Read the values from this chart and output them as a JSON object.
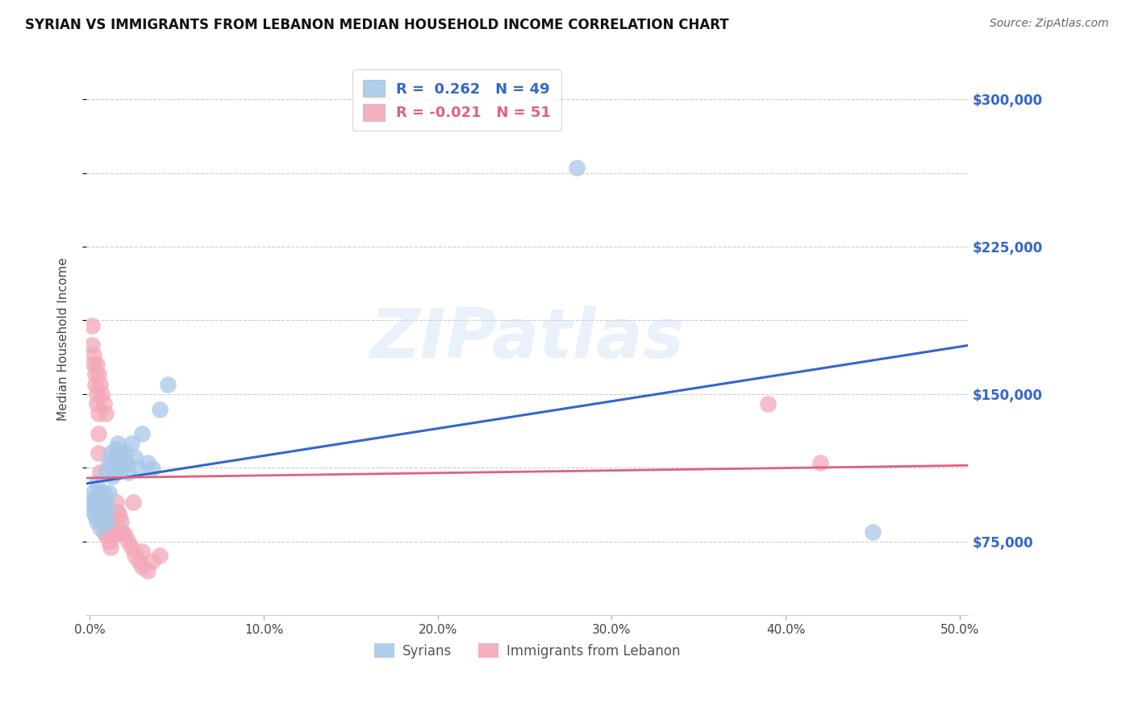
{
  "title": "SYRIAN VS IMMIGRANTS FROM LEBANON MEDIAN HOUSEHOLD INCOME CORRELATION CHART",
  "source": "Source: ZipAtlas.com",
  "ylabel": "Median Household Income",
  "ytick_vals": [
    75000,
    112500,
    150000,
    187500,
    225000,
    262500,
    300000
  ],
  "ytick_labels": [
    "$75,000",
    "",
    "$150,000",
    "",
    "$225,000",
    "",
    "$300,000"
  ],
  "ymin": 37500,
  "ymax": 318750,
  "xmin": -0.002,
  "xmax": 0.505,
  "xtick_vals": [
    0.0,
    0.1,
    0.2,
    0.3,
    0.4,
    0.5
  ],
  "xtick_labels": [
    "0.0%",
    "10.0%",
    "20.0%",
    "30.0%",
    "40.0%",
    "50.0%"
  ],
  "syrians_color": "#a8c8e8",
  "lebanon_color": "#f4a8b8",
  "line_blue": "#3366cc",
  "line_pink": "#e06080",
  "watermark_text": "ZIPatlas",
  "legend_label1": "Syrians",
  "legend_label2": "Immigrants from Lebanon",
  "legend_r1": "R =  0.262   N = 49",
  "legend_r2": "R = -0.021   N = 51",
  "syrians_x": [
    0.001,
    0.002,
    0.002,
    0.003,
    0.003,
    0.003,
    0.004,
    0.004,
    0.004,
    0.005,
    0.005,
    0.005,
    0.006,
    0.006,
    0.006,
    0.007,
    0.007,
    0.008,
    0.008,
    0.008,
    0.009,
    0.009,
    0.01,
    0.01,
    0.011,
    0.011,
    0.012,
    0.013,
    0.013,
    0.014,
    0.015,
    0.015,
    0.016,
    0.017,
    0.018,
    0.019,
    0.02,
    0.021,
    0.022,
    0.024,
    0.026,
    0.028,
    0.03,
    0.033,
    0.036,
    0.04,
    0.045,
    0.28,
    0.45
  ],
  "syrians_y": [
    95000,
    100000,
    90000,
    88000,
    97000,
    92000,
    85000,
    95000,
    105000,
    88000,
    93000,
    100000,
    82000,
    90000,
    97000,
    88000,
    95000,
    85000,
    92000,
    100000,
    110000,
    95000,
    92000,
    85000,
    115000,
    100000,
    120000,
    108000,
    115000,
    118000,
    122000,
    110000,
    125000,
    120000,
    118000,
    112000,
    120000,
    115000,
    110000,
    125000,
    118000,
    112000,
    130000,
    115000,
    112000,
    142000,
    155000,
    265000,
    80000
  ],
  "lebanon_x": [
    0.001,
    0.001,
    0.002,
    0.002,
    0.003,
    0.003,
    0.004,
    0.004,
    0.005,
    0.005,
    0.005,
    0.006,
    0.006,
    0.007,
    0.007,
    0.008,
    0.008,
    0.009,
    0.009,
    0.01,
    0.01,
    0.011,
    0.012,
    0.012,
    0.013,
    0.014,
    0.015,
    0.016,
    0.017,
    0.018,
    0.019,
    0.02,
    0.022,
    0.024,
    0.026,
    0.028,
    0.03,
    0.033,
    0.036,
    0.04,
    0.004,
    0.005,
    0.006,
    0.007,
    0.008,
    0.009,
    0.02,
    0.025,
    0.03,
    0.39,
    0.42
  ],
  "lebanon_y": [
    175000,
    185000,
    170000,
    165000,
    160000,
    155000,
    150000,
    145000,
    140000,
    130000,
    120000,
    110000,
    100000,
    95000,
    90000,
    85000,
    80000,
    78000,
    88000,
    82000,
    92000,
    75000,
    72000,
    80000,
    85000,
    78000,
    95000,
    90000,
    88000,
    85000,
    80000,
    78000,
    75000,
    72000,
    68000,
    65000,
    62000,
    60000,
    65000,
    68000,
    165000,
    160000,
    155000,
    150000,
    145000,
    140000,
    115000,
    95000,
    70000,
    145000,
    115000
  ]
}
